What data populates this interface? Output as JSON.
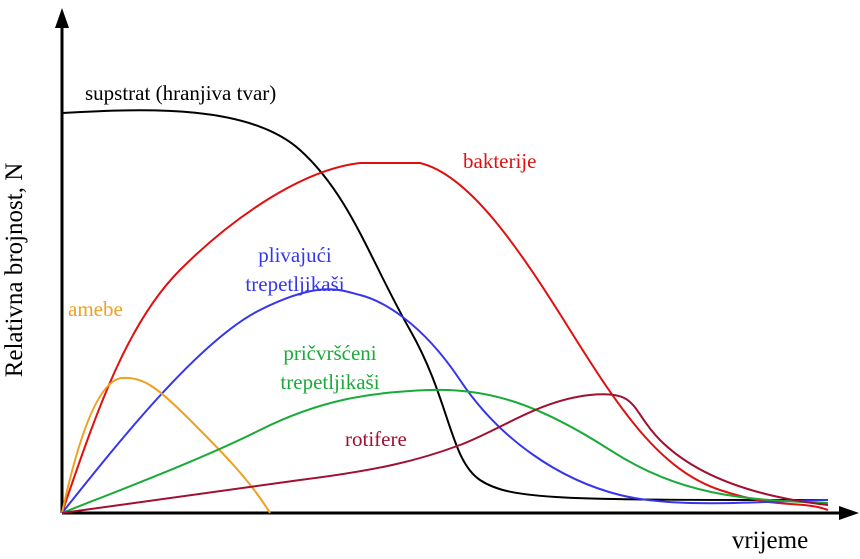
{
  "axes": {
    "y_label": "Relativna brojnost, N",
    "x_label": "vrijeme"
  },
  "curves": [
    {
      "lines": [
        "supstrat (hranjiva tvar)"
      ]
    },
    {
      "lines": [
        "bakterije"
      ]
    },
    {
      "lines": [
        "plivajući",
        "trepetljikaši"
      ]
    },
    {
      "lines": [
        "amebe"
      ]
    },
    {
      "lines": [
        "pričvršćeni",
        "trepetljikaši"
      ]
    },
    {
      "lines": [
        "rotifere"
      ]
    }
  ]
}
